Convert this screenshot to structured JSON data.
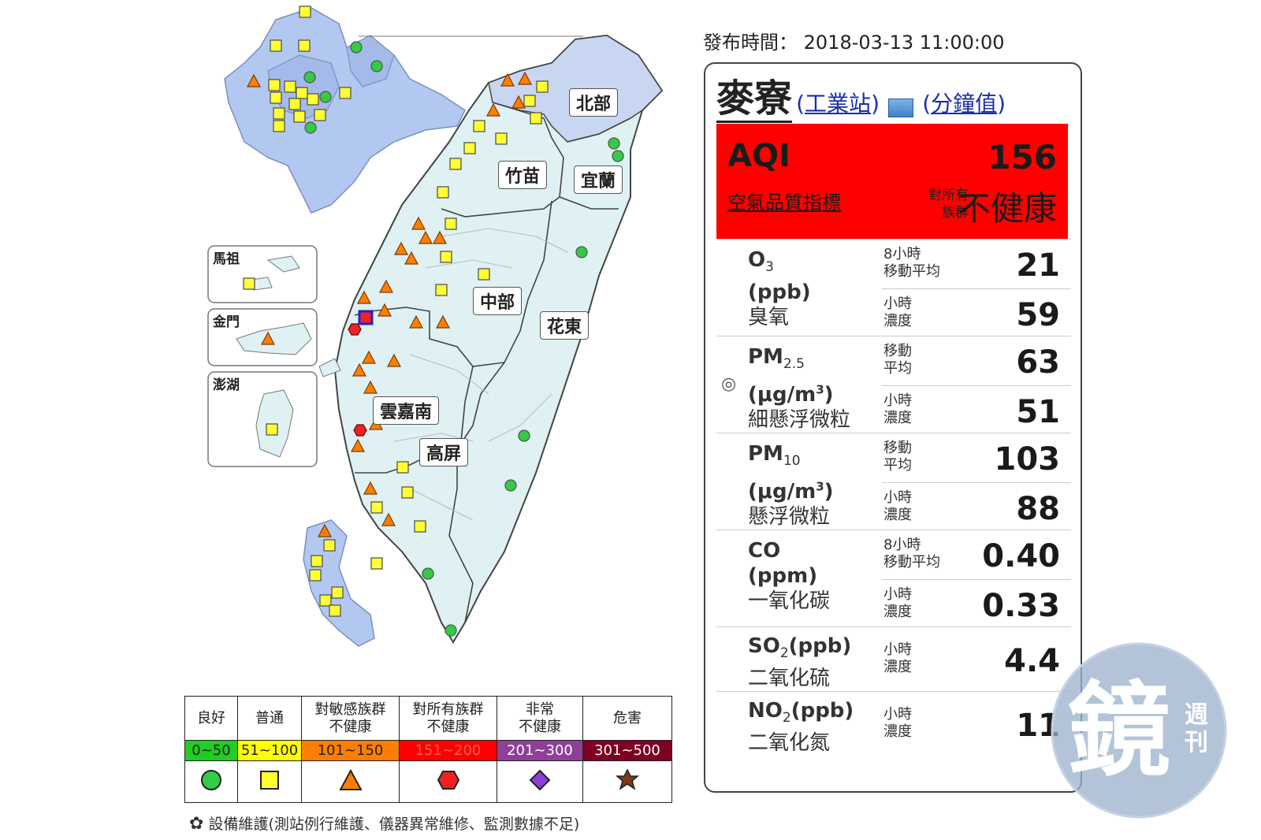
{
  "publish": {
    "label": "發布時間：",
    "time": "2018-03-13 11:00:00"
  },
  "map": {
    "regions": {
      "north": "北部",
      "zhumiao": "竹苗",
      "yilan": "宜蘭",
      "central": "中部",
      "huadong": "花東",
      "yunjianan": "雲嘉南",
      "gaoping": "高屏"
    },
    "insets": {
      "matsu": "馬祖",
      "kinmen": "金門",
      "penghu": "澎湖"
    }
  },
  "legend": {
    "categories": [
      {
        "label": "良好",
        "range": "0~50",
        "color": "#22cc22",
        "marker": "circle"
      },
      {
        "label": "普通",
        "range": "51~100",
        "color": "#ffff00",
        "marker": "square"
      },
      {
        "label": "對敏感族群\n不健康",
        "line1": "對敏感族群",
        "line2": "不健康",
        "range": "101~150",
        "color": "#ff7e00",
        "marker": "triangle"
      },
      {
        "label": "對所有族群\n不健康",
        "line1": "對所有族群",
        "line2": "不健康",
        "range": "151~200",
        "color": "#ff0000",
        "marker": "hexagon"
      },
      {
        "label": "非常\n不健康",
        "line1": "非常",
        "line2": "不健康",
        "range": "201~300",
        "color": "#8f3f97",
        "marker": "diamond"
      },
      {
        "label": "危害",
        "range": "301~500",
        "color": "#7e0023",
        "marker": "star"
      }
    ],
    "maintenance": "設備維護(測站例行維護、儀器異常維修、監測數據不足)"
  },
  "station": {
    "name": "麥寮",
    "type_link": "工業站",
    "minute_link": "分鐘值",
    "aqi_label": "AQI",
    "aqi_value": "156",
    "aqi_link": "空氣品質指標",
    "status_group": "對所有\n族群",
    "status_group_l1": "對所有",
    "status_group_l2": "族群",
    "status_text": "不健康",
    "status_color": "#ff0000"
  },
  "pollutants": [
    {
      "name_main": "O",
      "name_sub": "3",
      "unit": "(ppb)",
      "cname": "臭氧",
      "rows": [
        {
          "label1": "8小時",
          "label2": "移動平均",
          "value": "21"
        },
        {
          "label1": "小時",
          "label2": "濃度",
          "value": "59"
        }
      ]
    },
    {
      "name_main": "PM",
      "name_sub": "2.5",
      "unit_pre": "(μg/m",
      "unit_sup": "3",
      "unit_post": ")",
      "cname": "細懸浮微粒",
      "flag": "◎",
      "rows": [
        {
          "label1": "移動",
          "label2": "平均",
          "value": "63"
        },
        {
          "label1": "小時",
          "label2": "濃度",
          "value": "51"
        }
      ]
    },
    {
      "name_main": "PM",
      "name_sub": "10",
      "unit_pre": "(μg/m",
      "unit_sup": "3",
      "unit_post": ")",
      "cname": "懸浮微粒",
      "rows": [
        {
          "label1": "移動",
          "label2": "平均",
          "value": "103"
        },
        {
          "label1": "小時",
          "label2": "濃度",
          "value": "88"
        }
      ]
    },
    {
      "name_main": "CO",
      "unit": "(ppm)",
      "cname": "一氧化碳",
      "rows": [
        {
          "label1": "8小時",
          "label2": "移動平均",
          "value": "0.40"
        },
        {
          "label1": "小時",
          "label2": "濃度",
          "value": "0.33"
        }
      ]
    },
    {
      "name_main": "SO",
      "name_sub": "2",
      "name_post": "(ppb)",
      "cname": "二氧化硫",
      "rows": [
        {
          "label1": "小時",
          "label2": "濃度",
          "value": "4.4"
        }
      ]
    },
    {
      "name_main": "NO",
      "name_sub": "2",
      "name_post": "(ppb)",
      "cname": "二氧化氮",
      "rows": [
        {
          "label1": "小時",
          "label2": "濃度",
          "value": "11"
        }
      ]
    }
  ],
  "watermark": {
    "glyph": "鏡",
    "small": "週刊",
    "small_l1": "週",
    "small_l2": "刊"
  }
}
